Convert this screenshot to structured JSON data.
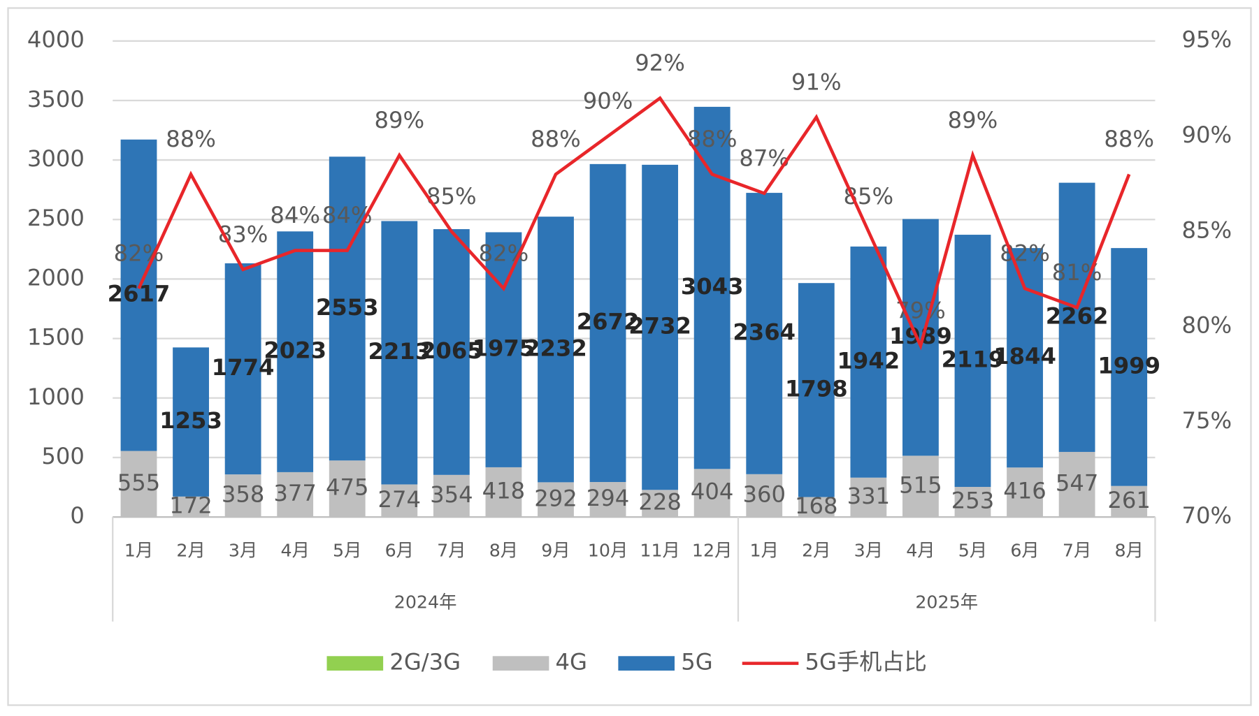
{
  "chart_data": {
    "type": "bar",
    "categories": [
      "1月",
      "2月",
      "3月",
      "4月",
      "5月",
      "6月",
      "7月",
      "8月",
      "9月",
      "10月",
      "11月",
      "12月",
      "1月",
      "2月",
      "3月",
      "4月",
      "5月",
      "6月",
      "7月",
      "8月"
    ],
    "groups": [
      {
        "label": "2024年",
        "span": 12
      },
      {
        "label": "2025年",
        "span": 8
      }
    ],
    "series": [
      {
        "name": "2G/3G",
        "color": "#92d050",
        "values": [
          0,
          0,
          0,
          0,
          0,
          0,
          0,
          0,
          0,
          0,
          0,
          0,
          0,
          0,
          0,
          0,
          0,
          0,
          0,
          0
        ]
      },
      {
        "name": "4G",
        "color": "#bfbfbf",
        "values": [
          555,
          172,
          358,
          377,
          475,
          274,
          354,
          418,
          292,
          294,
          228,
          404,
          360,
          168,
          331,
          515,
          253,
          416,
          547,
          261
        ]
      },
      {
        "name": "5G",
        "color": "#2e75b6",
        "values": [
          2617,
          1253,
          1774,
          2023,
          2553,
          2213,
          2065,
          1975,
          2232,
          2672,
          2732,
          3043,
          2364,
          1798,
          1942,
          1989,
          2119,
          1844,
          2262,
          1999
        ]
      },
      {
        "name": "5G手机占比",
        "type": "line",
        "axis": "y2",
        "color": "#e8262a",
        "values": [
          82,
          88,
          83,
          84,
          84,
          89,
          85,
          82,
          88,
          90,
          92,
          88,
          87,
          91,
          85,
          79,
          89,
          82,
          81,
          88
        ],
        "value_labels": [
          "82%",
          "88%",
          "83%",
          "84%",
          "84%",
          "89%",
          "85%",
          "82%",
          "88%",
          "90%",
          "92%",
          "88%",
          "87%",
          "91%",
          "85%",
          "79%",
          "89%",
          "82%",
          "81%",
          "88%"
        ]
      }
    ],
    "ylim": [
      0,
      4000
    ],
    "yticks": [
      0,
      500,
      1000,
      1500,
      2000,
      2500,
      3000,
      3500,
      4000
    ],
    "y2lim": [
      70,
      95
    ],
    "y2ticks": [
      {
        "value": 70,
        "label": "70%"
      },
      {
        "value": 75,
        "label": "75%"
      },
      {
        "value": 80,
        "label": "80%"
      },
      {
        "value": 85,
        "label": "85%"
      },
      {
        "value": 90,
        "label": "90%"
      },
      {
        "value": 95,
        "label": "95%"
      }
    ],
    "grid": true,
    "legend": "bottom"
  }
}
